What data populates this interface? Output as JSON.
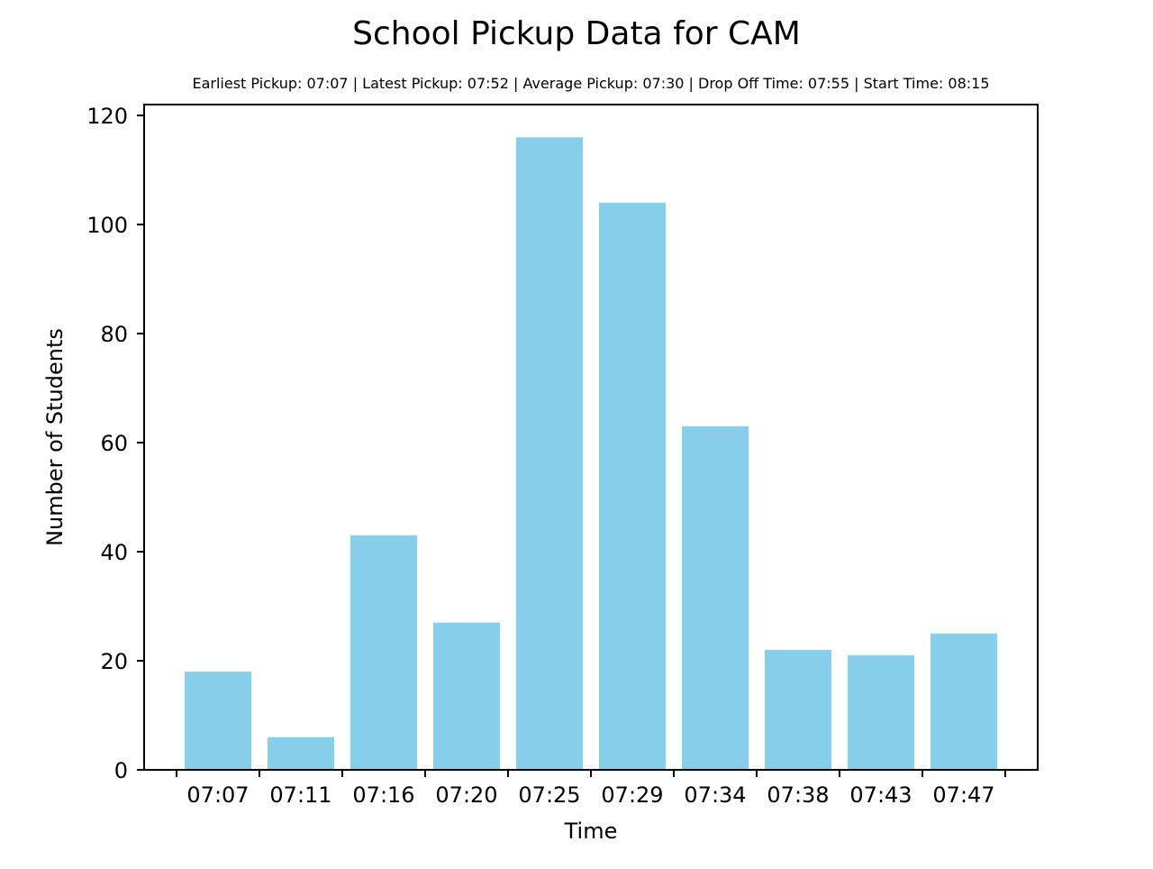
{
  "chart_data": {
    "type": "bar",
    "title": "School Pickup Data for CAM",
    "subtitle": "Earliest Pickup: 07:07 | Latest Pickup: 07:52 | Average Pickup: 07:30 | Drop Off Time: 07:55 | Start Time: 08:15",
    "xlabel": "Time",
    "ylabel": "Number of Students",
    "categories": [
      "07:07",
      "07:11",
      "07:16",
      "07:20",
      "07:25",
      "07:29",
      "07:34",
      "07:38",
      "07:43",
      "07:47"
    ],
    "values": [
      18,
      6,
      43,
      27,
      116,
      104,
      63,
      22,
      21,
      25
    ],
    "ylim": [
      0,
      122
    ],
    "yticks": [
      0,
      20,
      40,
      60,
      80,
      100,
      120
    ],
    "bar_color": "#87CEEB",
    "grid": false,
    "legend": false
  }
}
